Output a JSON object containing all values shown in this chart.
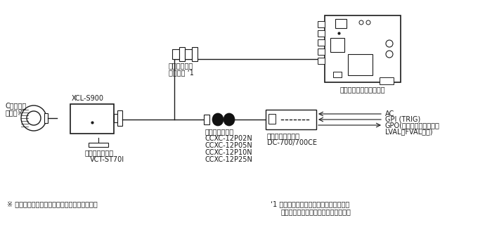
{
  "bg_color": "#ffffff",
  "line_color": "#1a1a1a",
  "text_color": "#1a1a1a",
  "bottom_note_left": "※ 高解像度に対応したレンズをお使い下さい。",
  "bottom_note_right1": "‘1 高伝送特性タイプをご使用ください。",
  "bottom_note_right2": "詳しくは特約店へおたずねください。",
  "label_lens_line1": "Cマウント",
  "label_lens_line2": "レンズ※",
  "label_camera": "XCL-S900",
  "label_tripod_line1": "三脚アダプター",
  "label_tripod_line2": "VCT-ST70I",
  "label_camera_link_line1": "カメラリンク",
  "label_camera_link_line2": "ケーブル ‘1",
  "label_board": "カメラ用画像入力ボード",
  "label_cable_line0": "カメラケーブル",
  "label_cable_line1": "CCXC-12P02N",
  "label_cable_line2": "CCXC-12P05N",
  "label_cable_line3": "CCXC-12P10N",
  "label_cable_line4": "CCXC-12P25N",
  "label_adapter_line1": "カメラアダプター",
  "label_adapter_line2": "DC-700/700CE",
  "label_ac": "AC",
  "label_gpi": "GPI (TRIG)",
  "label_gpo_line1": "GPO(エクスポージャー、",
  "label_gpo_line2": "LVAL，FVALなど)"
}
